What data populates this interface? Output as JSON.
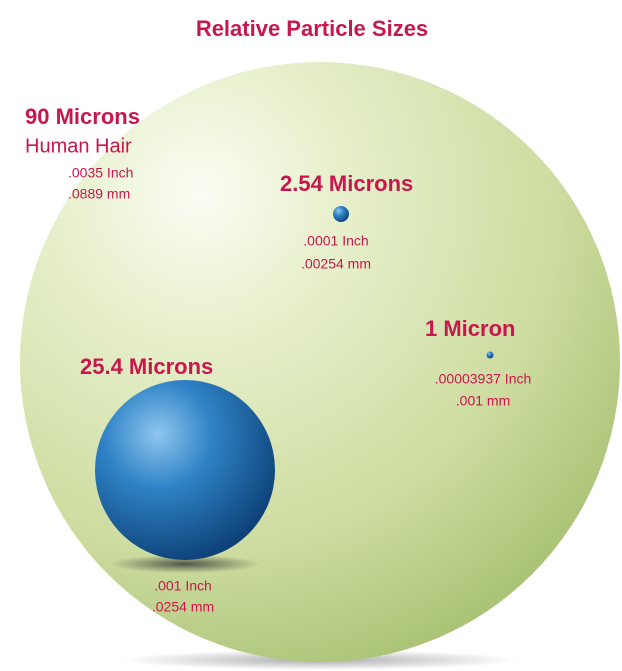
{
  "title": "Relative Particle Sizes",
  "particles": [
    {
      "size": "90 Microns",
      "name": "Human Hair",
      "inch": ".0035 Inch",
      "mm": ".0889 mm"
    },
    {
      "size": "2.54 Microns",
      "inch": ".0001 Inch",
      "mm": ".00254 mm"
    },
    {
      "size": "1 Micron",
      "inch": ".00003937 Inch",
      "mm": ".001 mm"
    },
    {
      "size": "25.4 Microns",
      "inch": ".001 Inch",
      "mm": ".0254 mm"
    }
  ]
}
